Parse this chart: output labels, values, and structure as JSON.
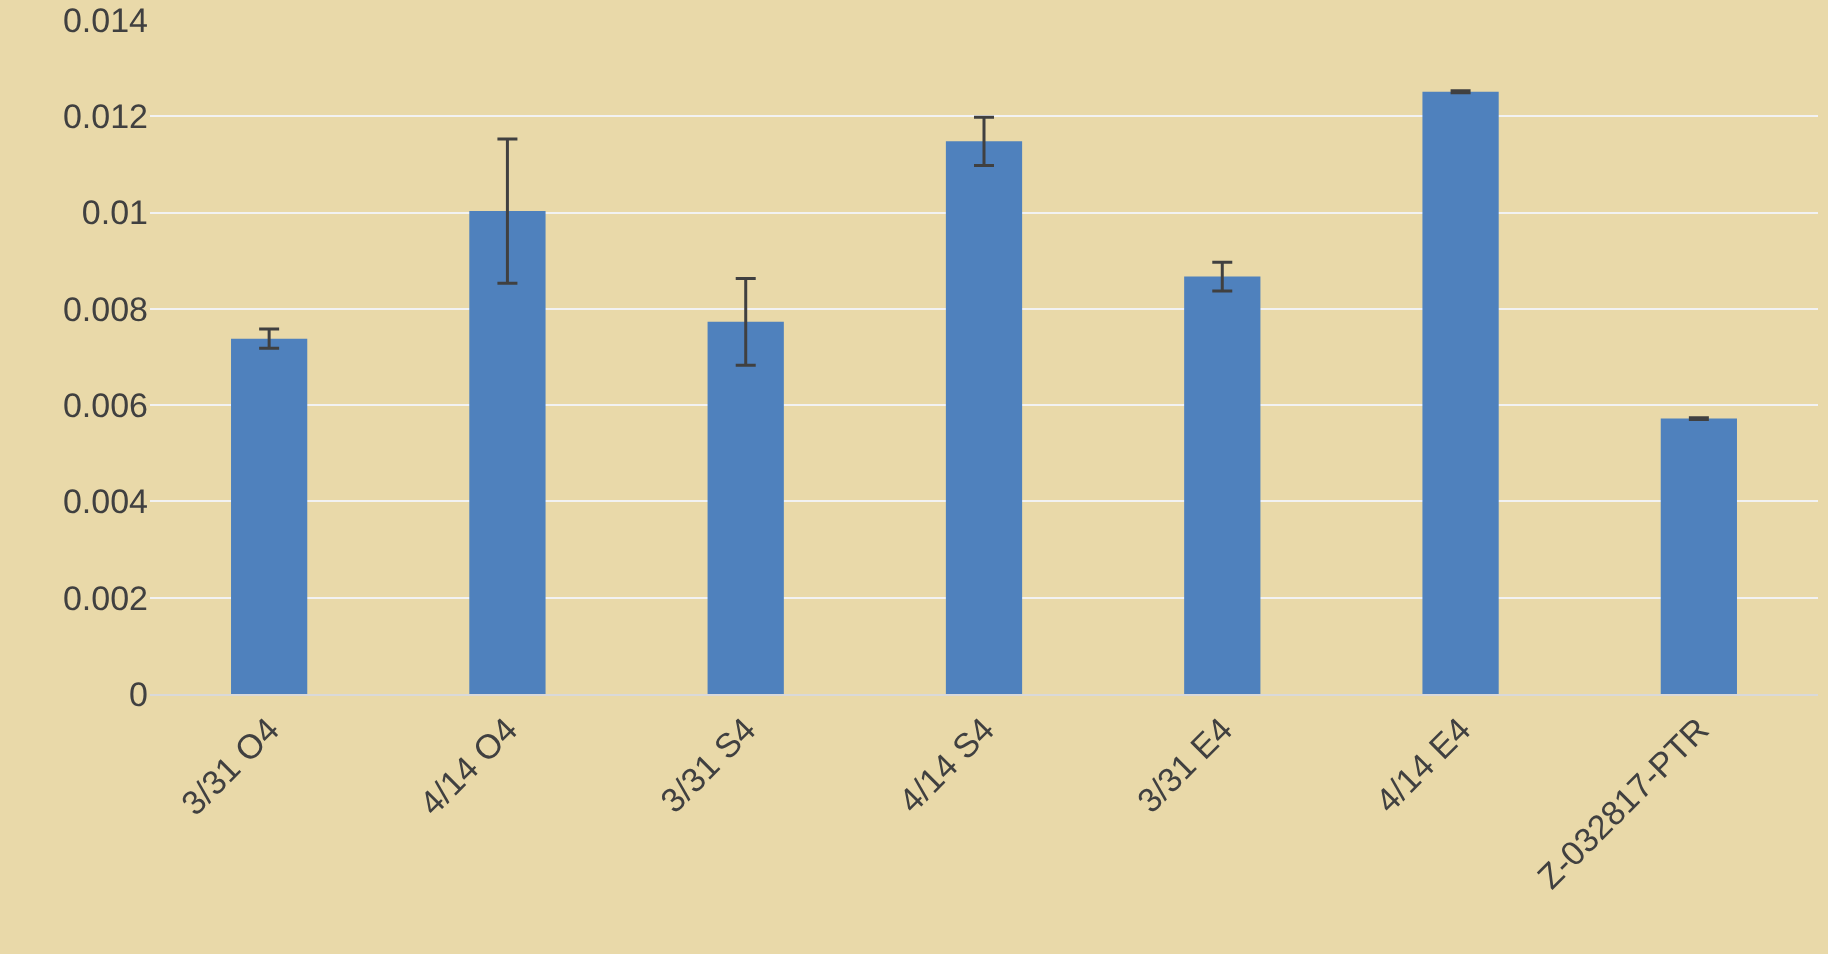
{
  "chart_data": {
    "type": "bar",
    "categories": [
      "3/31 O4",
      "4/14 O4",
      "3/31 S4",
      "4/14 S4",
      "3/31 E4",
      "4/14 E4",
      "Z-032817-PTR"
    ],
    "values": [
      0.00738,
      0.01003,
      0.00773,
      0.01148,
      0.00867,
      0.01251,
      0.00572
    ],
    "errors": [
      0.0002,
      0.0015,
      0.0009,
      0.0005,
      0.0003,
      2e-05,
      2e-05
    ],
    "color": "#4f81bd",
    "ylim": [
      0,
      0.014
    ],
    "yticks": [
      0,
      0.002,
      0.004,
      0.006,
      0.008,
      0.01,
      0.012,
      0.014
    ],
    "grid": "y",
    "legend": false
  }
}
